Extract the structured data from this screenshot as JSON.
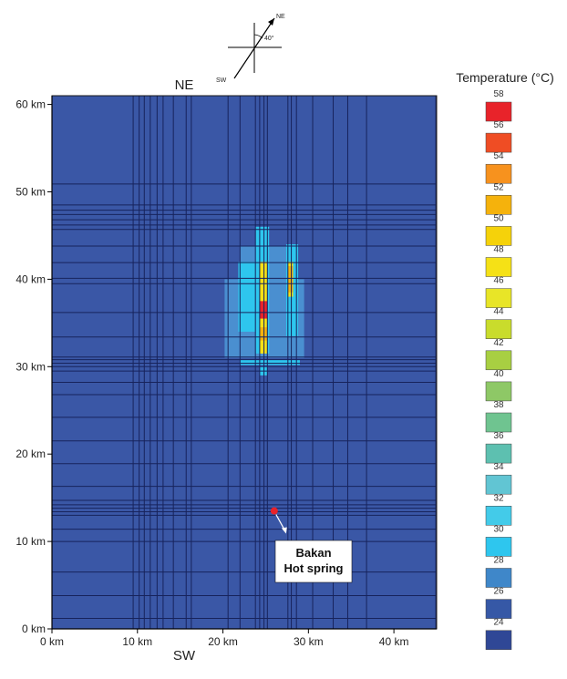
{
  "chart_data": {
    "type": "heatmap",
    "title": "",
    "x_axis": {
      "range": [
        0,
        45
      ],
      "ticks": [
        0,
        10,
        20,
        30,
        40
      ],
      "tick_labels": [
        "0 km",
        "10 km",
        "20 km",
        "30 km",
        "40 km"
      ],
      "label": "SW"
    },
    "y_axis": {
      "range": [
        0,
        61
      ],
      "ticks": [
        0,
        10,
        20,
        30,
        40,
        50,
        60
      ],
      "tick_labels": [
        "0 km",
        "10 km",
        "20 km",
        "30 km",
        "40 km",
        "50 km",
        "60 km"
      ],
      "label": "NE"
    },
    "background": {
      "temperature": 24,
      "color": "#3a57a6"
    },
    "grid_lines": {
      "color": "#17235c",
      "x": [
        0,
        9.5,
        10.2,
        10.8,
        11.5,
        12.3,
        13,
        14.2,
        15.7,
        16.3,
        20.6,
        22,
        23.8,
        24.3,
        24.8,
        25.2,
        27.6,
        28,
        28.6,
        30.5,
        32.9,
        34.6,
        36.8,
        44.9
      ],
      "y": [
        1.2,
        3.8,
        6.5,
        10,
        11.4,
        13,
        13.4,
        13.8,
        14.2,
        14.7,
        16.3,
        18.9,
        21.5,
        24.2,
        26.8,
        28.2,
        29.5,
        30,
        30.4,
        30.8,
        31.1,
        33.4,
        36.2,
        39.5,
        40.1,
        41.9,
        43.8,
        45.7,
        46.2,
        46.8,
        47.4,
        47.9,
        48.5,
        50.9
      ]
    },
    "cells": [
      {
        "x": [
          20.2,
          29.5
        ],
        "y": [
          31,
          40
        ],
        "temperature": 28,
        "color": "#4a8fd0"
      },
      {
        "x": [
          22,
          28.5
        ],
        "y": [
          40,
          43.8
        ],
        "temperature": 28,
        "color": "#4a8fd0"
      },
      {
        "x": [
          23.8,
          25.4
        ],
        "y": [
          31.5,
          46
        ],
        "temperature": 32,
        "color": "#2ec6ee"
      },
      {
        "x": [
          27.4,
          28.8
        ],
        "y": [
          33.5,
          44
        ],
        "temperature": 32,
        "color": "#2ec6ee"
      },
      {
        "x": [
          21.8,
          24
        ],
        "y": [
          34,
          42
        ],
        "temperature": 32,
        "color": "#2ec6ee"
      },
      {
        "x": [
          22,
          29
        ],
        "y": [
          30.2,
          30.8
        ],
        "temperature": 32,
        "color": "#2ec6ee"
      },
      {
        "x": [
          24.3,
          25.2
        ],
        "y": [
          31.5,
          42
        ],
        "temperature": 48,
        "color": "#f5e116"
      },
      {
        "x": [
          27.6,
          28.2
        ],
        "y": [
          38,
          42
        ],
        "temperature": 48,
        "color": "#f5e116"
      },
      {
        "x": [
          24.3,
          25.2
        ],
        "y": [
          35.5,
          37.5
        ],
        "temperature": 58,
        "color": "#e8232a"
      },
      {
        "x": [
          24.3,
          25.2
        ],
        "y": [
          33,
          34.5
        ],
        "temperature": 50,
        "color": "#f5b20c"
      },
      {
        "x": [
          27.6,
          28.2
        ],
        "y": [
          38.5,
          41.5
        ],
        "temperature": 50,
        "color": "#f5b20c"
      },
      {
        "x": [
          24.3,
          25.2
        ],
        "y": [
          29,
          30
        ],
        "temperature": 32,
        "color": "#2ec6ee"
      }
    ],
    "colorbar": {
      "title": "Temperature (°C)",
      "labels": [
        "58",
        "56",
        "54",
        "52",
        "50",
        "48",
        "46",
        "44",
        "42",
        "40",
        "38",
        "36",
        "34",
        "32",
        "30",
        "28",
        "26",
        "24"
      ],
      "colors": [
        "#e8232a",
        "#ef4d24",
        "#f7921e",
        "#f5b20c",
        "#f5d20a",
        "#f5e116",
        "#e8e527",
        "#c9dc2c",
        "#a8cf42",
        "#8ec866",
        "#6fc490",
        "#5dc0b0",
        "#61c5d3",
        "#43cbe9",
        "#2ec6ee",
        "#3f87c9",
        "#3658a6",
        "#2f4796"
      ]
    },
    "annotations": [
      {
        "text": "NE",
        "position": "top"
      },
      {
        "text": "Bakan Hot spring",
        "x": 26,
        "y": 13.5,
        "marker_color": "#e8232a"
      }
    ],
    "compass": {
      "labels": [
        "NE",
        "40°",
        "SW"
      ]
    }
  }
}
